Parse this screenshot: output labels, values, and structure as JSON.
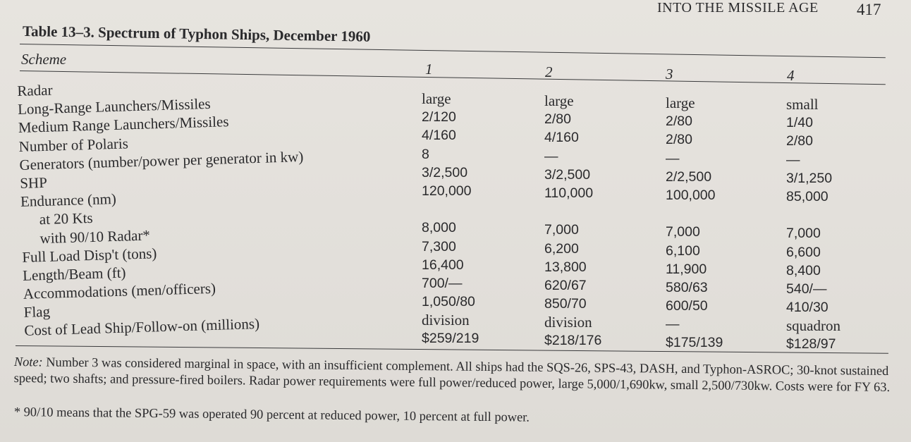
{
  "running_head": "INTO THE MISSILE AGE",
  "page_number": "417",
  "table": {
    "title": "Table 13–3. Spectrum of Typhon Ships, December 1960",
    "scheme_label": "Scheme",
    "columns": [
      "1",
      "2",
      "3",
      "4"
    ],
    "row_labels": [
      "Radar",
      "Long-Range Launchers/Missiles",
      "Medium Range Launchers/Missiles",
      "Number of Polaris",
      "Generators (number/power per generator in kw)",
      "SHP",
      "Endurance (nm)",
      "at 20 Kts",
      "with 90/10 Radar*",
      "Full Load Disp't (tons)",
      "Length/Beam (ft)",
      "Accommodations (men/officers)",
      "Flag",
      "Cost of Lead Ship/Follow-on (millions)"
    ],
    "scheme_values": [
      [
        "large",
        "2/120",
        "4/160",
        "8",
        "3/2,500",
        "120,000",
        "",
        "8,000",
        "7,300",
        "16,400",
        "700/—",
        "1,050/80",
        "division",
        "$259/219"
      ],
      [
        "large",
        "2/80",
        "4/160",
        "—",
        "3/2,500",
        "110,000",
        "",
        "7,000",
        "6,200",
        "13,800",
        "620/67",
        "850/70",
        "division",
        "$218/176"
      ],
      [
        "large",
        "2/80",
        "2/80",
        "—",
        "2/2,500",
        "100,000",
        "",
        "7,000",
        "6,100",
        "11,900",
        "580/63",
        "600/50",
        "—",
        "$175/139"
      ],
      [
        "small",
        "1/40",
        "2/80",
        "—",
        "3/1,250",
        "85,000",
        "",
        "7,000",
        "6,600",
        "8,400",
        "540/—",
        "410/30",
        "squadron",
        "$128/97"
      ]
    ]
  },
  "note": {
    "lead": "Note:",
    "text": " Number 3 was considered marginal in space, with an insufficient complement. All ships had the SQS-26, SPS-43, DASH, and Typhon-ASROC; 30-knot sustained speed; two shafts; and pressure-fired boilers. Radar power requirements were full power/reduced power, large 5,000/1,690kw, small 2,500/730kw. Costs were for FY 63."
  },
  "footnote": "* 90/10 means that the SPG-59 was operated 90 percent at reduced power, 10 percent at full power."
}
